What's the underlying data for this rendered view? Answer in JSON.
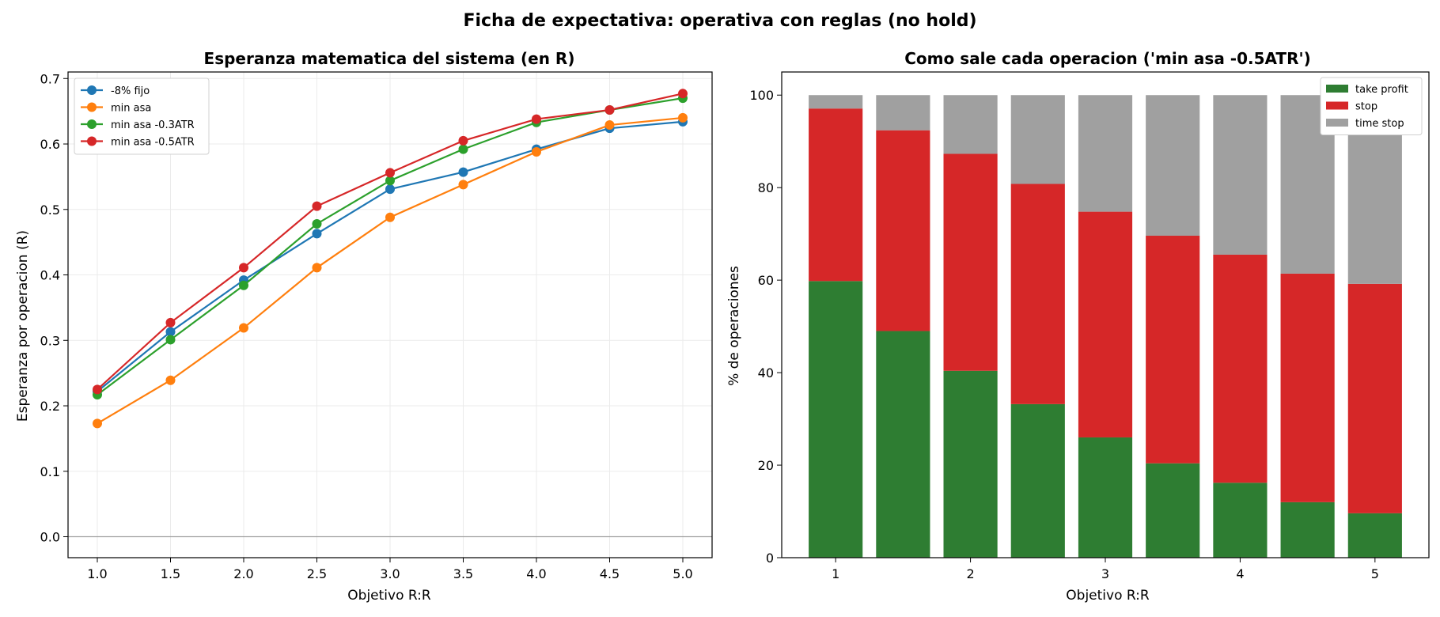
{
  "figure": {
    "title": "Ficha de expectativa: operativa con reglas (no hold)"
  },
  "chart_data": [
    {
      "type": "line",
      "title": "Esperanza matematica del sistema (en R)",
      "xlabel": "Objetivo R:R",
      "ylabel": "Esperanza por operacion (R)",
      "x": [
        1.0,
        1.5,
        2.0,
        2.5,
        3.0,
        3.5,
        4.0,
        4.5,
        5.0
      ],
      "xticks": [
        "1.0",
        "1.5",
        "2.0",
        "2.5",
        "3.0",
        "3.5",
        "4.0",
        "4.5",
        "5.0"
      ],
      "yticks": [
        "0.0",
        "0.1",
        "0.2",
        "0.3",
        "0.4",
        "0.5",
        "0.6",
        "0.7"
      ],
      "xlim": [
        0.8,
        5.2
      ],
      "ylim": [
        -0.032,
        0.71
      ],
      "grid": true,
      "reference_line_y": 0.0,
      "legend_position": "upper-left",
      "series": [
        {
          "name": "-8% fijo",
          "color": "#1f77b4",
          "values": [
            0.222,
            0.313,
            0.392,
            0.463,
            0.531,
            0.557,
            0.592,
            0.624,
            0.634
          ]
        },
        {
          "name": "min asa",
          "color": "#ff7f0e",
          "values": [
            0.173,
            0.239,
            0.319,
            0.411,
            0.488,
            0.538,
            0.588,
            0.629,
            0.64
          ]
        },
        {
          "name": "min asa -0.3ATR",
          "color": "#2ca02c",
          "values": [
            0.217,
            0.301,
            0.384,
            0.478,
            0.544,
            0.592,
            0.633,
            0.652,
            0.67
          ]
        },
        {
          "name": "min asa -0.5ATR",
          "color": "#d62728",
          "values": [
            0.225,
            0.327,
            0.411,
            0.505,
            0.556,
            0.605,
            0.638,
            0.652,
            0.677
          ]
        }
      ]
    },
    {
      "type": "bar",
      "stacked": true,
      "title": "Como sale cada operacion ('min asa -0.5ATR')",
      "xlabel": "Objetivo R:R",
      "ylabel": "% de operaciones",
      "x": [
        1.0,
        1.5,
        2.0,
        2.5,
        3.0,
        3.5,
        4.0,
        4.5,
        5.0
      ],
      "xticks": [
        "1",
        "2",
        "3",
        "4",
        "5"
      ],
      "xtick_values": [
        1,
        2,
        3,
        4,
        5
      ],
      "yticks": [
        "0",
        "20",
        "40",
        "60",
        "80",
        "100"
      ],
      "xlim": [
        0.6,
        5.4
      ],
      "ylim": [
        0,
        105
      ],
      "bar_width": 0.4,
      "legend_position": "upper-right",
      "series": [
        {
          "name": "take profit",
          "color": "#2e7d32",
          "values": [
            59.8,
            49.0,
            40.4,
            33.2,
            26.0,
            20.4,
            16.2,
            12.0,
            9.6
          ]
        },
        {
          "name": "stop",
          "color": "#d62728",
          "values": [
            37.3,
            43.4,
            46.9,
            47.6,
            48.8,
            49.2,
            49.3,
            49.4,
            49.6
          ]
        },
        {
          "name": "time stop",
          "color": "#a0a0a0",
          "values": [
            2.9,
            7.6,
            12.7,
            19.2,
            25.2,
            30.4,
            34.5,
            38.6,
            40.8
          ]
        }
      ]
    }
  ]
}
